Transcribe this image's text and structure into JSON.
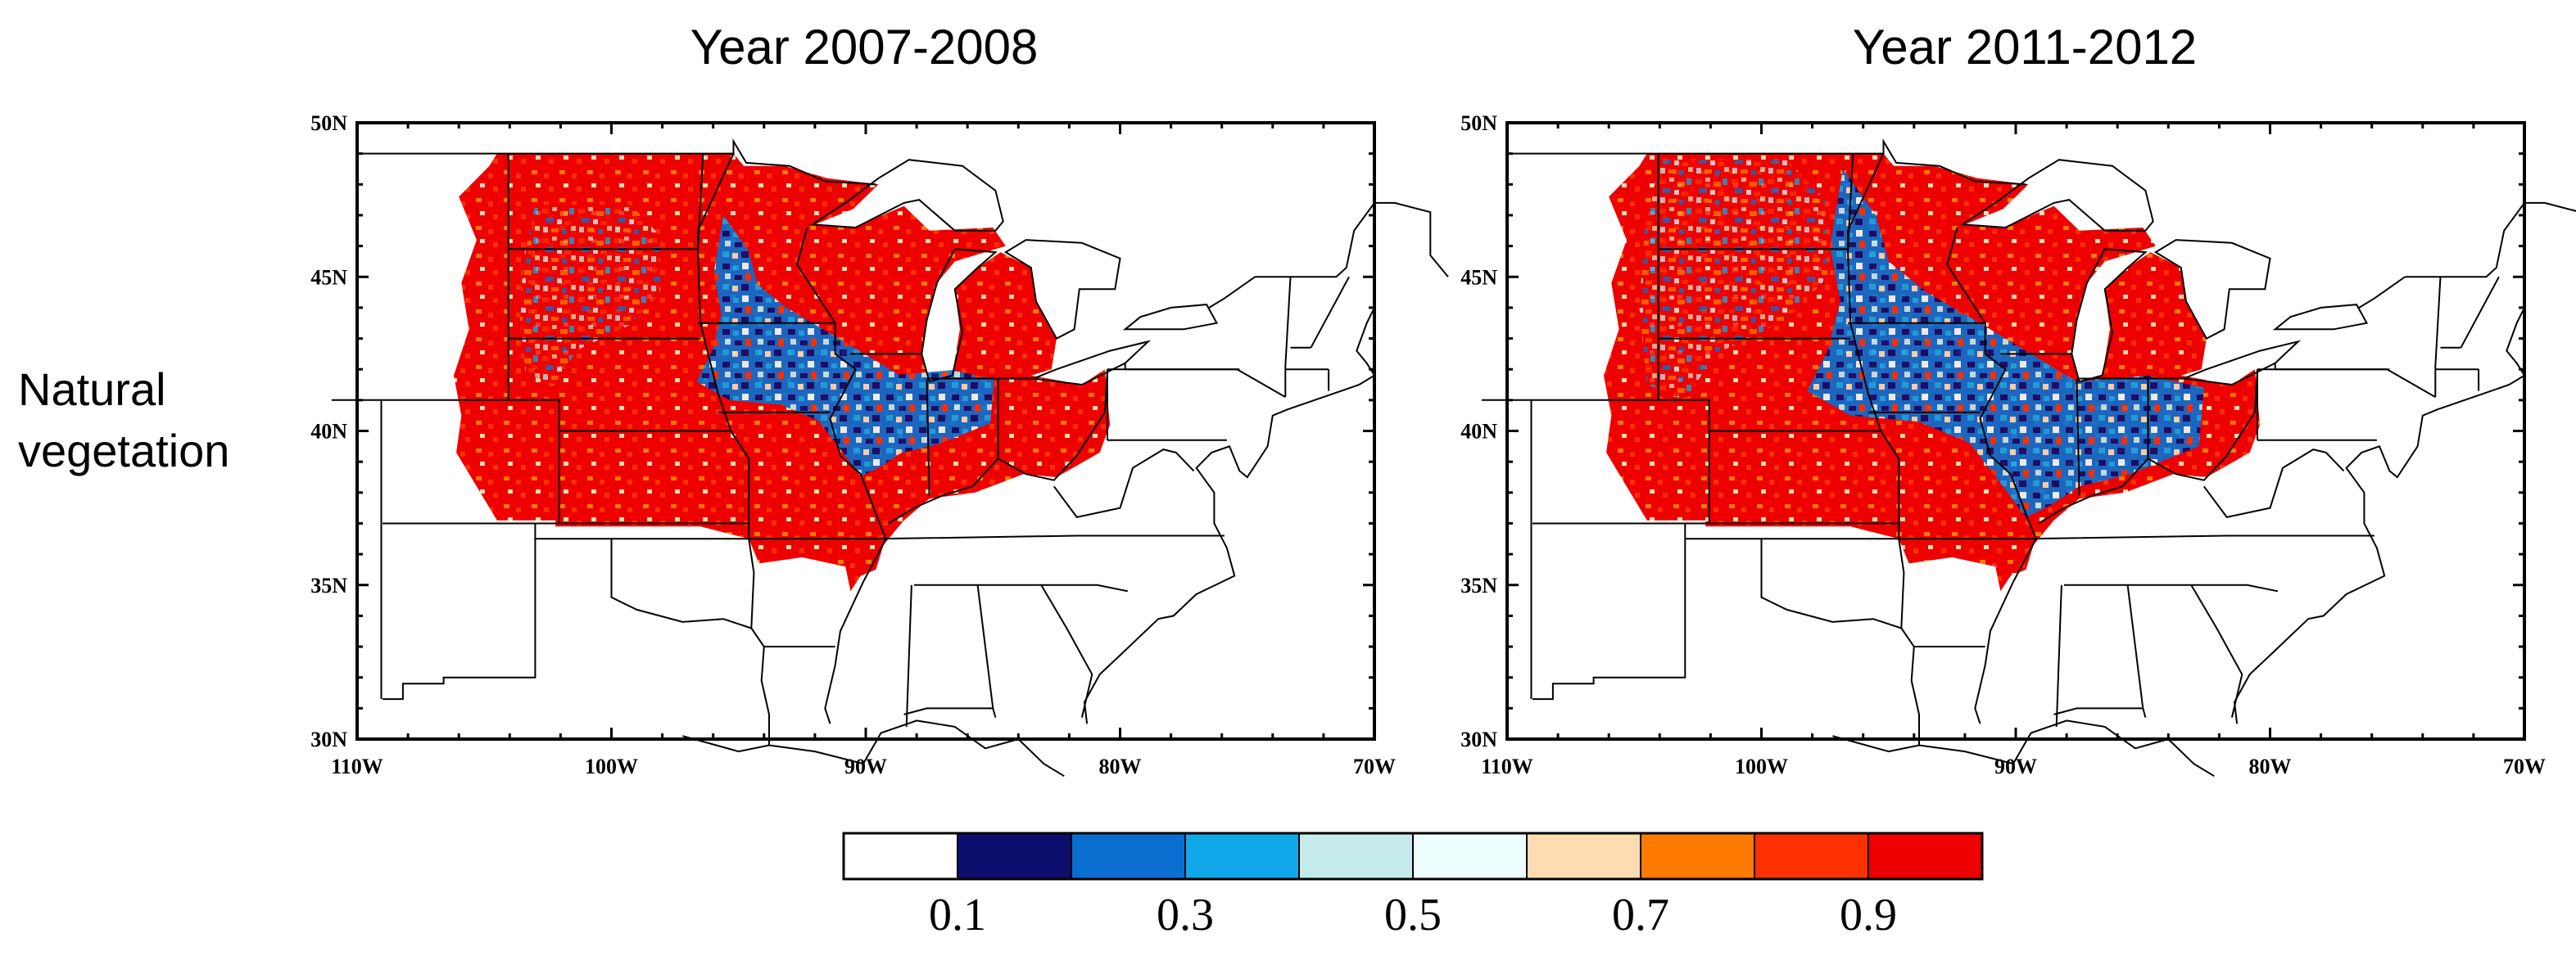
{
  "figure": {
    "row_label_lines": [
      "Natural",
      "vegetation"
    ],
    "panels": [
      {
        "title": "Year 2007-2008",
        "variant": "a"
      },
      {
        "title": "Year 2011-2012",
        "variant": "b"
      }
    ],
    "lat_ticks": [
      "50N",
      "45N",
      "40N",
      "35N",
      "30N"
    ],
    "lat_values": [
      50,
      45,
      40,
      35,
      30
    ],
    "lon_ticks": [
      "110W",
      "100W",
      "90W",
      "80W",
      "70W"
    ],
    "lon_values": [
      -110,
      -100,
      -90,
      -80,
      -70
    ],
    "extent": {
      "lon": [
        -110,
        -70
      ],
      "lat": [
        30,
        50
      ]
    }
  },
  "colorbar": {
    "colors": [
      "#ffffff",
      "#0d0d6e",
      "#0a6fd0",
      "#10a8e8",
      "#c4eaea",
      "#eefdfd",
      "#fcdcb0",
      "#ff7a00",
      "#ff3000",
      "#ee0000"
    ],
    "tick_labels": [
      "0.1",
      "0.3",
      "0.5",
      "0.7",
      "0.9"
    ],
    "tick_values": [
      0.1,
      0.3,
      0.5,
      0.7,
      0.9
    ]
  }
}
